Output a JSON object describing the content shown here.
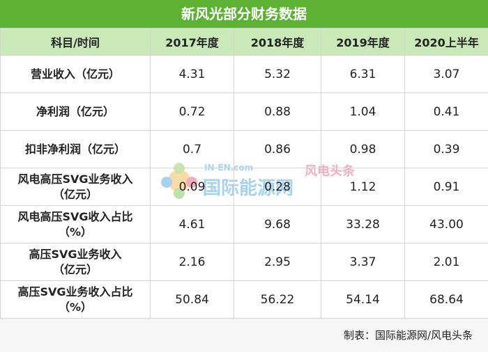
{
  "header": {
    "title": "新风光部分财务数据"
  },
  "table": {
    "columns": [
      "科目/时间",
      "2017年度",
      "2018年度",
      "2019年度",
      "2020上半年"
    ],
    "rows": [
      {
        "label": [
          "营业收入（亿元）"
        ],
        "values": [
          "4.31",
          "5.32",
          "6.31",
          "3.07"
        ]
      },
      {
        "label": [
          "净利润（亿元）"
        ],
        "values": [
          "0.72",
          "0.88",
          "1.04",
          "0.41"
        ]
      },
      {
        "label": [
          "扣非净利润（亿元）"
        ],
        "values": [
          "0.7",
          "0.86",
          "0.98",
          "0.39"
        ]
      },
      {
        "label": [
          "风电高压SVG业务收入",
          "（亿元）"
        ],
        "values": [
          "0.09",
          "0.28",
          "1.12",
          "0.91"
        ]
      },
      {
        "label": [
          "风电高压SVG收入占比",
          "（%）"
        ],
        "values": [
          "4.61",
          "9.68",
          "33.28",
          "43.00"
        ]
      },
      {
        "label": [
          "高压SVG业务收入",
          "（亿元）"
        ],
        "values": [
          "2.16",
          "2.95",
          "3.37",
          "2.01"
        ]
      },
      {
        "label": [
          "高压SVG业务收入占比",
          "（%）"
        ],
        "values": [
          "50.84",
          "56.22",
          "54.14",
          "68.64"
        ]
      }
    ]
  },
  "watermark": {
    "url": "IN-EN.com",
    "brand": "国际能源网",
    "channel": "风电头条"
  },
  "footer": {
    "source": "制表：国际能源网/风电头条"
  }
}
